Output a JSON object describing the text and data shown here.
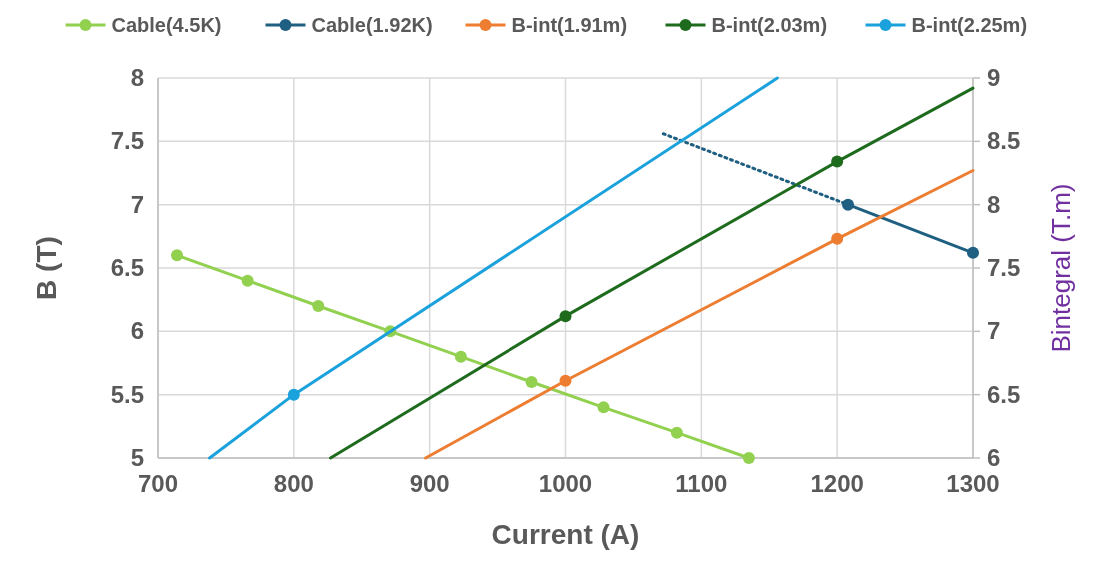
{
  "chart_data": {
    "type": "line",
    "xlabel": "Current (A)",
    "ylabel": "B (T)",
    "y2label": "Bintegral (T.m)",
    "xlim": [
      700,
      1300
    ],
    "xticks": [
      700,
      800,
      900,
      1000,
      1100,
      1200,
      1300
    ],
    "ylim": [
      5,
      8
    ],
    "yticks": [
      5,
      {
        "value": 5.5,
        "label": "5.5"
      },
      6,
      {
        "value": 6.5,
        "label": "6.5"
      },
      7,
      {
        "value": 7.5,
        "label": "7.5"
      },
      8
    ],
    "y2lim": [
      6,
      9
    ],
    "y2ticks": [
      6,
      {
        "value": 6.5,
        "label": "6.5"
      },
      7,
      {
        "value": 7.5,
        "label": "7.5"
      },
      8,
      {
        "value": 8.5,
        "label": "8.5"
      },
      9
    ],
    "grid": true,
    "legend": "top",
    "series": [
      {
        "name": "Cable(4.5K)",
        "type": "line",
        "color": "#92d050",
        "marker": "circle",
        "x": [
          714,
          766,
          818,
          871,
          923,
          975,
          1028,
          1082,
          1135
        ],
        "values": [
          6.6,
          6.4,
          6.2,
          6.0,
          5.8,
          5.6,
          5.4,
          5.2,
          5.0
        ]
      },
      {
        "type": "line",
        "color": "#1f5f82",
        "line_style": "dotted",
        "x": [
          1072,
          1208
        ],
        "values": [
          7.56,
          7.0
        ]
      },
      {
        "name": "Cable(1.92K)",
        "type": "line",
        "color": "#1f5f82",
        "marker": "circle",
        "x": [
          1208,
          1300
        ],
        "values": [
          7.0,
          6.62
        ]
      },
      {
        "type": "line",
        "color": "#ed7d31",
        "marker": "none",
        "axis": "y2",
        "x": [
          897,
          1000,
          1200,
          1300
        ],
        "values": [
          6.0,
          6.61,
          7.73,
          8.27
        ]
      },
      {
        "name": "B-int(1.91m)",
        "type": "scatter",
        "color": "#ed7d31",
        "marker": "circle",
        "axis": "y2",
        "x": [
          1000,
          1200
        ],
        "values": [
          6.61,
          7.73
        ]
      },
      {
        "type": "line",
        "color": "#1e6b1e",
        "marker": "none",
        "axis": "y2",
        "x": [
          827,
          1000,
          1200,
          1300
        ],
        "values": [
          6.0,
          7.12,
          8.34,
          8.92
        ]
      },
      {
        "name": "B-int(2.03m)",
        "type": "scatter",
        "color": "#1e6b1e",
        "marker": "circle",
        "axis": "y2",
        "x": [
          1000,
          1200
        ],
        "values": [
          7.12,
          8.34
        ]
      },
      {
        "type": "line",
        "color": "#1ba1dc",
        "marker": "none",
        "axis": "y2",
        "x": [
          738,
          800,
          1156
        ],
        "values": [
          6.0,
          6.5,
          9.0
        ]
      },
      {
        "name": "B-int(2.25m)",
        "type": "scatter",
        "color": "#1ba1dc",
        "marker": "circle",
        "axis": "y2",
        "x": [
          800
        ],
        "values": [
          6.5
        ]
      }
    ]
  }
}
